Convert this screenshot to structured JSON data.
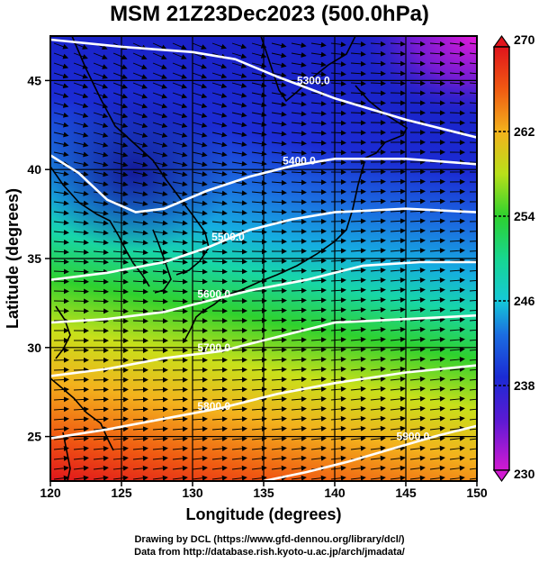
{
  "title": "MSM 21Z23Dec2023 (500.0hPa)",
  "credits": {
    "line1": "Drawing by DCL (https://www.gfd-dennou.org/library/dcl/)",
    "line2": "Data from http://database.rish.kyoto-u.ac.jp/arch/jmadata/"
  },
  "colors": {
    "cold": "#d21ad2",
    "cool": "#1b2bd4",
    "mid": "#15c8d8",
    "green": "#2ed12e",
    "warm": "#f08a10",
    "hot": "#e0141c"
  },
  "chart_data": {
    "type": "heatmap",
    "title": "MSM 21Z23Dec2023 (500.0hPa)",
    "xlabel": "Longitude (degrees)",
    "ylabel": "Latitude  (degrees)",
    "xlim": [
      120,
      150
    ],
    "ylim": [
      22.5,
      47.5
    ],
    "xticks": [
      "120",
      "125",
      "130",
      "135",
      "140",
      "145",
      "150"
    ],
    "yticks": [
      "25",
      "30",
      "35",
      "40",
      "45"
    ],
    "colorbar": {
      "min": 230,
      "max": 270,
      "ticks": [
        "230",
        "238",
        "246",
        "254",
        "262",
        "270"
      ]
    },
    "contours": [
      {
        "label": "5300.0",
        "label_lon": 138.5,
        "label_lat": 44.8,
        "points": [
          [
            120,
            47.3
          ],
          [
            125,
            46.9
          ],
          [
            130,
            46.6
          ],
          [
            133,
            46.2
          ],
          [
            136,
            45.2
          ],
          [
            140,
            44.0
          ],
          [
            145,
            42.8
          ],
          [
            150,
            41.8
          ]
        ]
      },
      {
        "label": "5400.0",
        "label_lon": 137.5,
        "label_lat": 40.3,
        "points": [
          [
            120,
            40.8
          ],
          [
            122,
            39.8
          ],
          [
            124,
            38.3
          ],
          [
            126,
            37.6
          ],
          [
            128,
            37.8
          ],
          [
            131,
            38.8
          ],
          [
            134,
            39.6
          ],
          [
            137,
            40.2
          ],
          [
            140,
            40.6
          ],
          [
            145,
            40.6
          ],
          [
            150,
            40.3
          ]
        ]
      },
      {
        "label": "5500.0",
        "label_lon": 132.5,
        "label_lat": 36.0,
        "points": [
          [
            120,
            33.8
          ],
          [
            124,
            34.2
          ],
          [
            128,
            34.8
          ],
          [
            131,
            35.6
          ],
          [
            134,
            36.6
          ],
          [
            137,
            37.2
          ],
          [
            140,
            37.6
          ],
          [
            145,
            37.8
          ],
          [
            150,
            37.6
          ]
        ]
      },
      {
        "label": "5600.0",
        "label_lon": 131.5,
        "label_lat": 32.8,
        "points": [
          [
            120,
            31.4
          ],
          [
            124,
            31.6
          ],
          [
            128,
            32.0
          ],
          [
            131,
            32.6
          ],
          [
            134,
            33.2
          ],
          [
            138,
            33.8
          ],
          [
            142,
            34.6
          ],
          [
            146,
            34.8
          ],
          [
            150,
            34.8
          ]
        ]
      },
      {
        "label": "5700.0",
        "label_lon": 131.5,
        "label_lat": 29.8,
        "points": [
          [
            120,
            28.4
          ],
          [
            124,
            28.8
          ],
          [
            128,
            29.4
          ],
          [
            132,
            29.8
          ],
          [
            136,
            30.6
          ],
          [
            140,
            31.4
          ],
          [
            145,
            31.6
          ],
          [
            150,
            31.8
          ]
        ]
      },
      {
        "label": "5800.0",
        "label_lon": 131.5,
        "label_lat": 26.5,
        "points": [
          [
            120,
            24.9
          ],
          [
            124,
            25.4
          ],
          [
            128,
            26.0
          ],
          [
            132,
            26.6
          ],
          [
            136,
            27.4
          ],
          [
            140,
            28.0
          ],
          [
            145,
            28.6
          ],
          [
            150,
            29.0
          ]
        ]
      },
      {
        "label": "5900.0",
        "label_lon": 145.5,
        "label_lat": 24.8,
        "points": [
          [
            135,
            22.5
          ],
          [
            138,
            23.0
          ],
          [
            141,
            23.6
          ],
          [
            144,
            24.3
          ],
          [
            147,
            25.0
          ],
          [
            150,
            25.6
          ]
        ]
      }
    ]
  }
}
